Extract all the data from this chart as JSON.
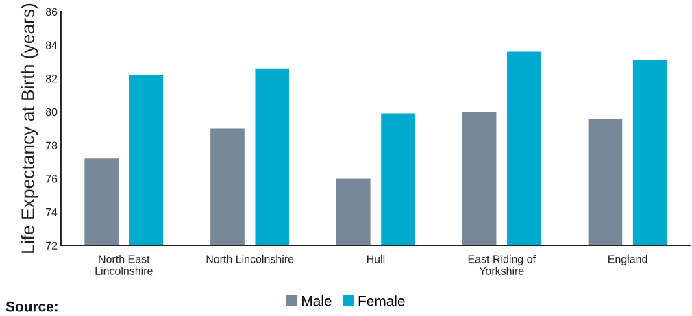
{
  "chart_data": {
    "type": "bar",
    "ylabel": "Life Expectancy at Birth (years)",
    "categories": [
      "North East\nLincolnshire",
      "North Lincolnshire",
      "Hull",
      "East Riding of\nYorkshire",
      "England"
    ],
    "series": [
      {
        "name": "Male",
        "color": "#778899",
        "values": [
          77.2,
          79.0,
          76.0,
          80.0,
          79.6
        ]
      },
      {
        "name": "Female",
        "color": "#00a9ce",
        "values": [
          82.2,
          82.6,
          79.9,
          83.6,
          83.1
        ]
      }
    ],
    "ylim": [
      72,
      86
    ],
    "yticks": [
      72,
      74,
      76,
      78,
      80,
      82,
      84,
      86
    ],
    "grid": false,
    "legend": "bottom",
    "annotations": [
      "Source:"
    ]
  }
}
